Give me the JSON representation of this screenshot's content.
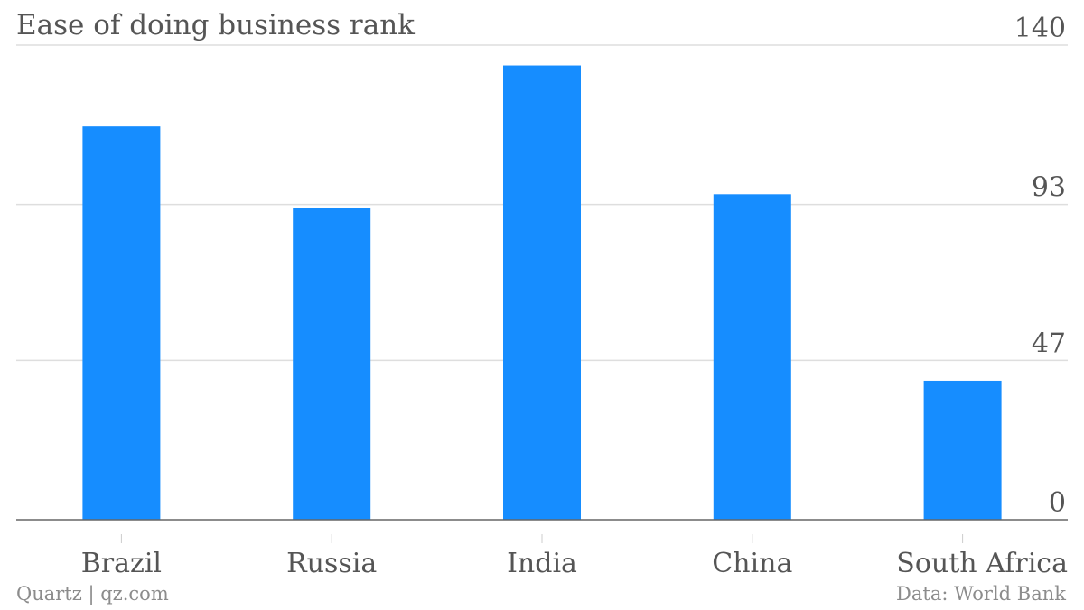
{
  "chart_data": {
    "type": "bar",
    "title": "Ease of doing business rank",
    "categories": [
      "Brazil",
      "Russia",
      "India",
      "China",
      "South Africa"
    ],
    "values": [
      116,
      92,
      134,
      96,
      41
    ],
    "ylim": [
      0,
      140
    ],
    "yticks": [
      0,
      47,
      93,
      140
    ],
    "y_axis_position": "right",
    "grid": true,
    "bar_color": "#168dff",
    "xlabel": "",
    "ylabel": ""
  },
  "footer": {
    "source_credit": "Quartz | qz.com",
    "data_credit": "Data: World Bank"
  }
}
